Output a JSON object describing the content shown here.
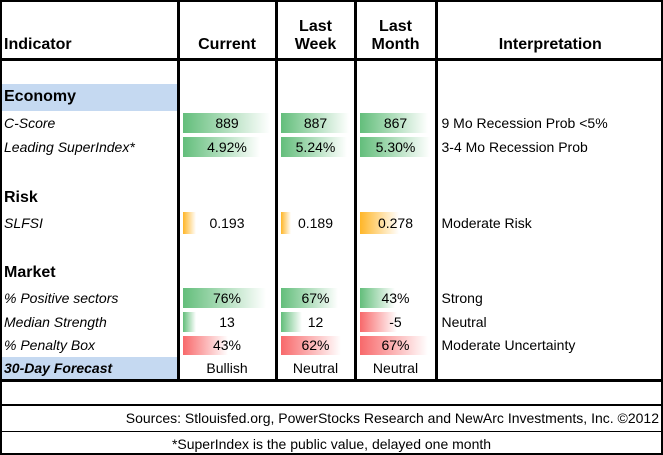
{
  "header": {
    "columns": [
      [
        "Indicator"
      ],
      [
        "Current"
      ],
      [
        "Last",
        "Week"
      ],
      [
        "Last",
        "Month"
      ],
      [
        "Interpretation"
      ]
    ]
  },
  "sections": [
    {
      "title": "Economy",
      "rows": [
        {
          "label": "C-Score",
          "values": [
            889,
            887,
            867
          ],
          "interpretation": "9 Mo Recession Prob <5%"
        },
        {
          "label": "Leading SuperIndex*",
          "values": [
            "4.92%",
            "5.24%",
            "5.30%"
          ],
          "interpretation": "3-4 Mo Recession Prob"
        }
      ]
    },
    {
      "title": "Risk",
      "rows": [
        {
          "label": "SLFSI",
          "values": [
            0.193,
            0.189,
            0.278
          ],
          "interpretation": "Moderate Risk"
        }
      ]
    },
    {
      "title": "Market",
      "rows": [
        {
          "label": "% Positive sectors",
          "values": [
            "76%",
            "67%",
            "43%"
          ],
          "interpretation": "Strong"
        },
        {
          "label": "Median Strength",
          "values": [
            13,
            12,
            -5
          ],
          "interpretation": "Neutral"
        },
        {
          "label": "% Penalty Box",
          "values": [
            "43%",
            "62%",
            "67%"
          ],
          "interpretation": "Moderate Uncertainty"
        }
      ]
    }
  ],
  "forecast": {
    "label": "30-Day Forecast",
    "values": [
      "Bullish",
      "Neutral",
      "Neutral"
    ]
  },
  "sources": "Sources: Stlouisfed.org, PowerStocks Research and NewArc Investments, Inc. ©2012",
  "footnote": "*SuperIndex is the public value, delayed one month"
}
